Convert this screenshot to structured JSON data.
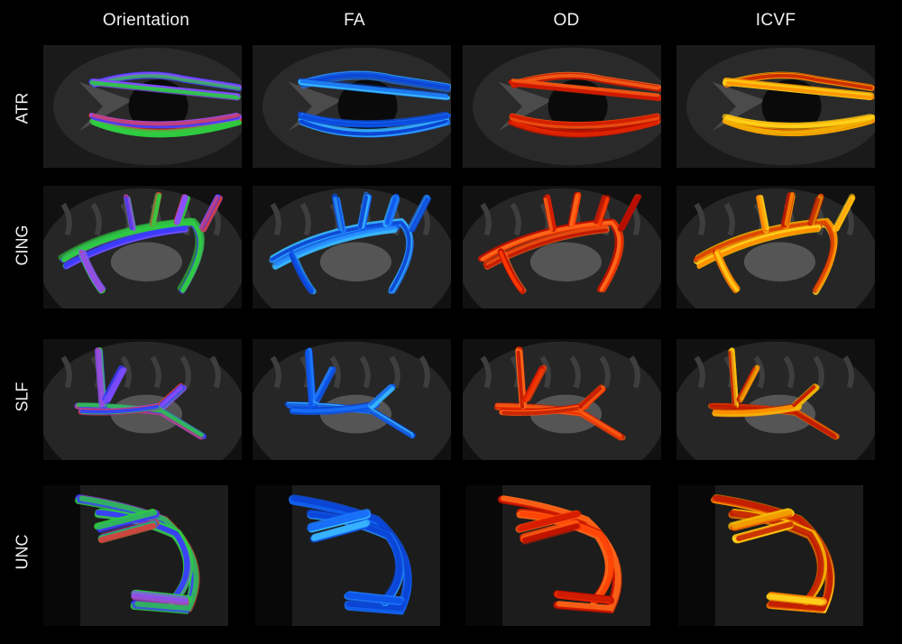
{
  "columns": [
    {
      "label": "Orientation",
      "scheme": "orientation"
    },
    {
      "label": "FA",
      "scheme": "fa"
    },
    {
      "label": "OD",
      "scheme": "od"
    },
    {
      "label": "ICVF",
      "scheme": "icvf"
    }
  ],
  "rows": [
    {
      "label": "ATR",
      "view": "axial"
    },
    {
      "label": "CING",
      "view": "sagittal"
    },
    {
      "label": "SLF",
      "view": "sagittal"
    },
    {
      "label": "UNC",
      "view": "coronal"
    }
  ],
  "colors": {
    "background": "#000000",
    "text": "#f2f2f2",
    "orientation": [
      "#2ecc40",
      "#3a3aff",
      "#e03a3a",
      "#8a4fff"
    ],
    "fa": [
      "#1e7bff",
      "#0a3fd0",
      "#38b6ff",
      "#0d55e8"
    ],
    "od": [
      "#ff3a00",
      "#d61e00",
      "#ff6a1a",
      "#b80f00"
    ],
    "icvf": [
      "#ffd21a",
      "#f0b000",
      "#ff8a00",
      "#c01a00"
    ]
  }
}
